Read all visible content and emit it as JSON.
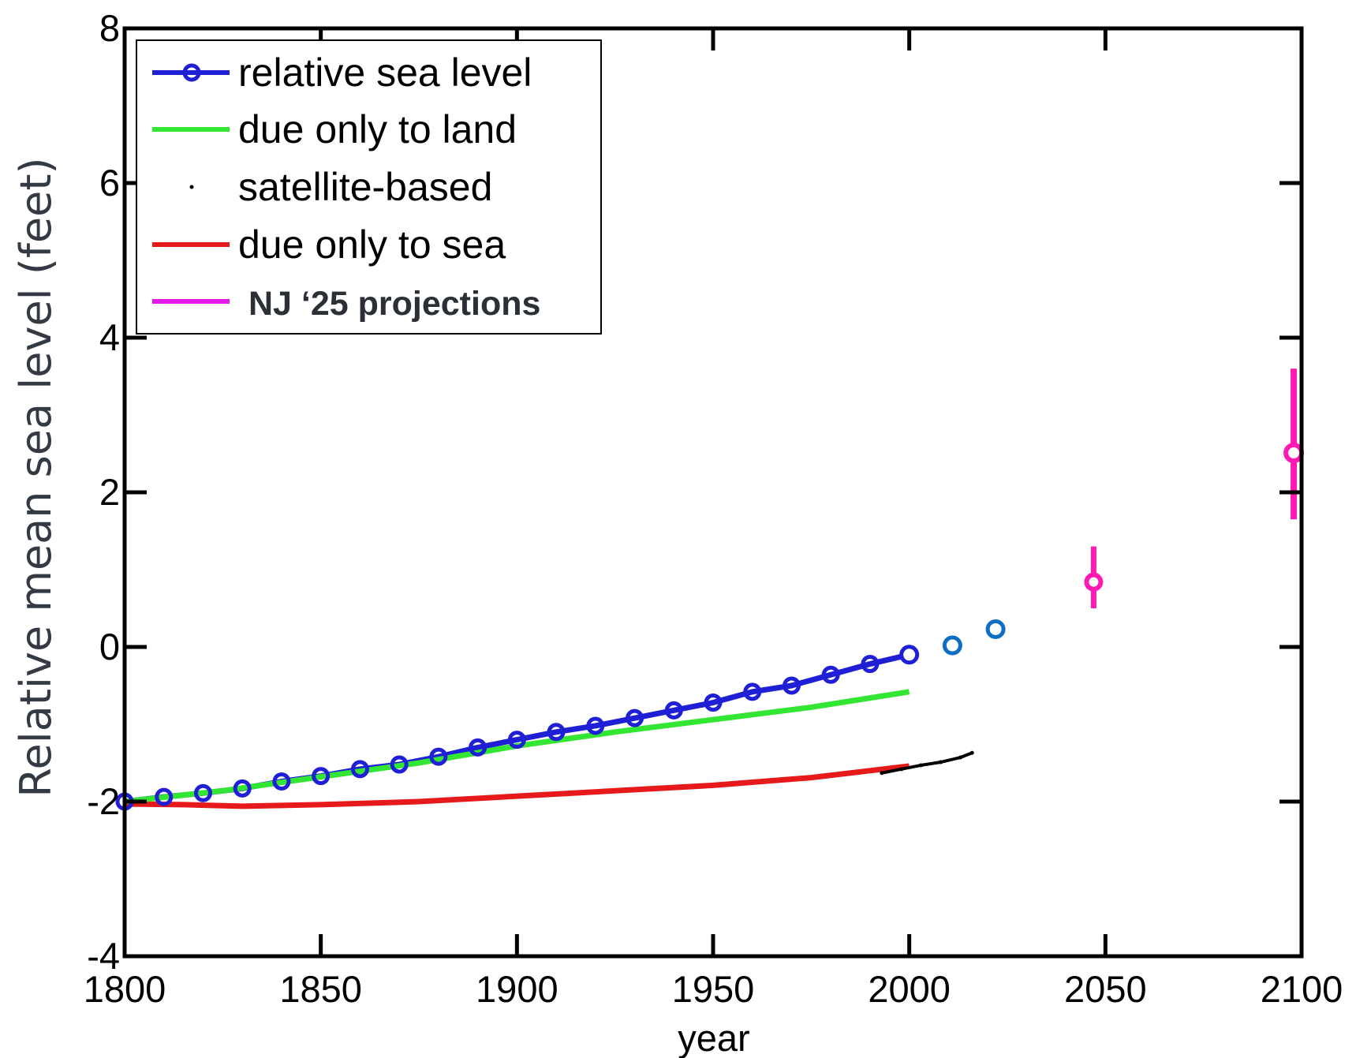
{
  "chart_data": {
    "type": "line",
    "title": "",
    "xlabel": "year",
    "ylabel": "Relative mean sea level (feet)",
    "xlim": [
      1800,
      2100
    ],
    "ylim": [
      -4,
      8
    ],
    "xticks": [
      1800,
      1850,
      1900,
      1950,
      2000,
      2050,
      2100
    ],
    "yticks": [
      -4,
      -2,
      0,
      2,
      4,
      6,
      8
    ],
    "legend_position": "top-left",
    "grid": false,
    "series": [
      {
        "name": "relative sea level",
        "color": "#1f1fd6",
        "marker": "circle",
        "x": [
          1800,
          1810,
          1820,
          1830,
          1840,
          1850,
          1860,
          1870,
          1880,
          1890,
          1900,
          1910,
          1920,
          1930,
          1940,
          1950,
          1960,
          1970,
          1980,
          1990,
          2000
        ],
        "y": [
          -2.0,
          -1.94,
          -1.89,
          -1.83,
          -1.74,
          -1.67,
          -1.58,
          -1.52,
          -1.42,
          -1.3,
          -1.2,
          -1.1,
          -1.02,
          -0.92,
          -0.82,
          -0.72,
          -0.58,
          -0.5,
          -0.36,
          -0.22,
          -0.1
        ]
      },
      {
        "name": "due only to land",
        "color": "#33e633",
        "x": [
          1800,
          1825,
          1850,
          1875,
          1900,
          1925,
          1950,
          1975,
          2000
        ],
        "y": [
          -2.0,
          -1.86,
          -1.68,
          -1.5,
          -1.28,
          -1.1,
          -0.94,
          -0.78,
          -0.58
        ]
      },
      {
        "name": "satellite-based",
        "color": "#000000",
        "x": [
          1993,
          1998,
          2003,
          2008,
          2013,
          2016
        ],
        "y": [
          -1.63,
          -1.58,
          -1.53,
          -1.49,
          -1.43,
          -1.37
        ]
      },
      {
        "name": "due only to sea",
        "color": "#e61a1a",
        "x": [
          1800,
          1815,
          1830,
          1850,
          1875,
          1900,
          1925,
          1950,
          1975,
          1990,
          2000
        ],
        "y": [
          -2.03,
          -2.04,
          -2.06,
          -2.04,
          -2.0,
          -1.93,
          -1.86,
          -1.79,
          -1.69,
          -1.6,
          -1.54
        ]
      },
      {
        "name": "NJ ‘25 projections",
        "color": "#ff1ab3",
        "legend_color": "#e61ae6",
        "x": [
          2047,
          2098
        ],
        "y": [
          0.84,
          2.51
        ],
        "y_low": [
          0.5,
          1.65
        ],
        "y_high": [
          1.3,
          3.6
        ]
      }
    ],
    "extra_points": {
      "color": "#0d6fc4",
      "marker": "open-circle",
      "x": [
        2011,
        2022
      ],
      "y": [
        0.02,
        0.23
      ]
    }
  }
}
